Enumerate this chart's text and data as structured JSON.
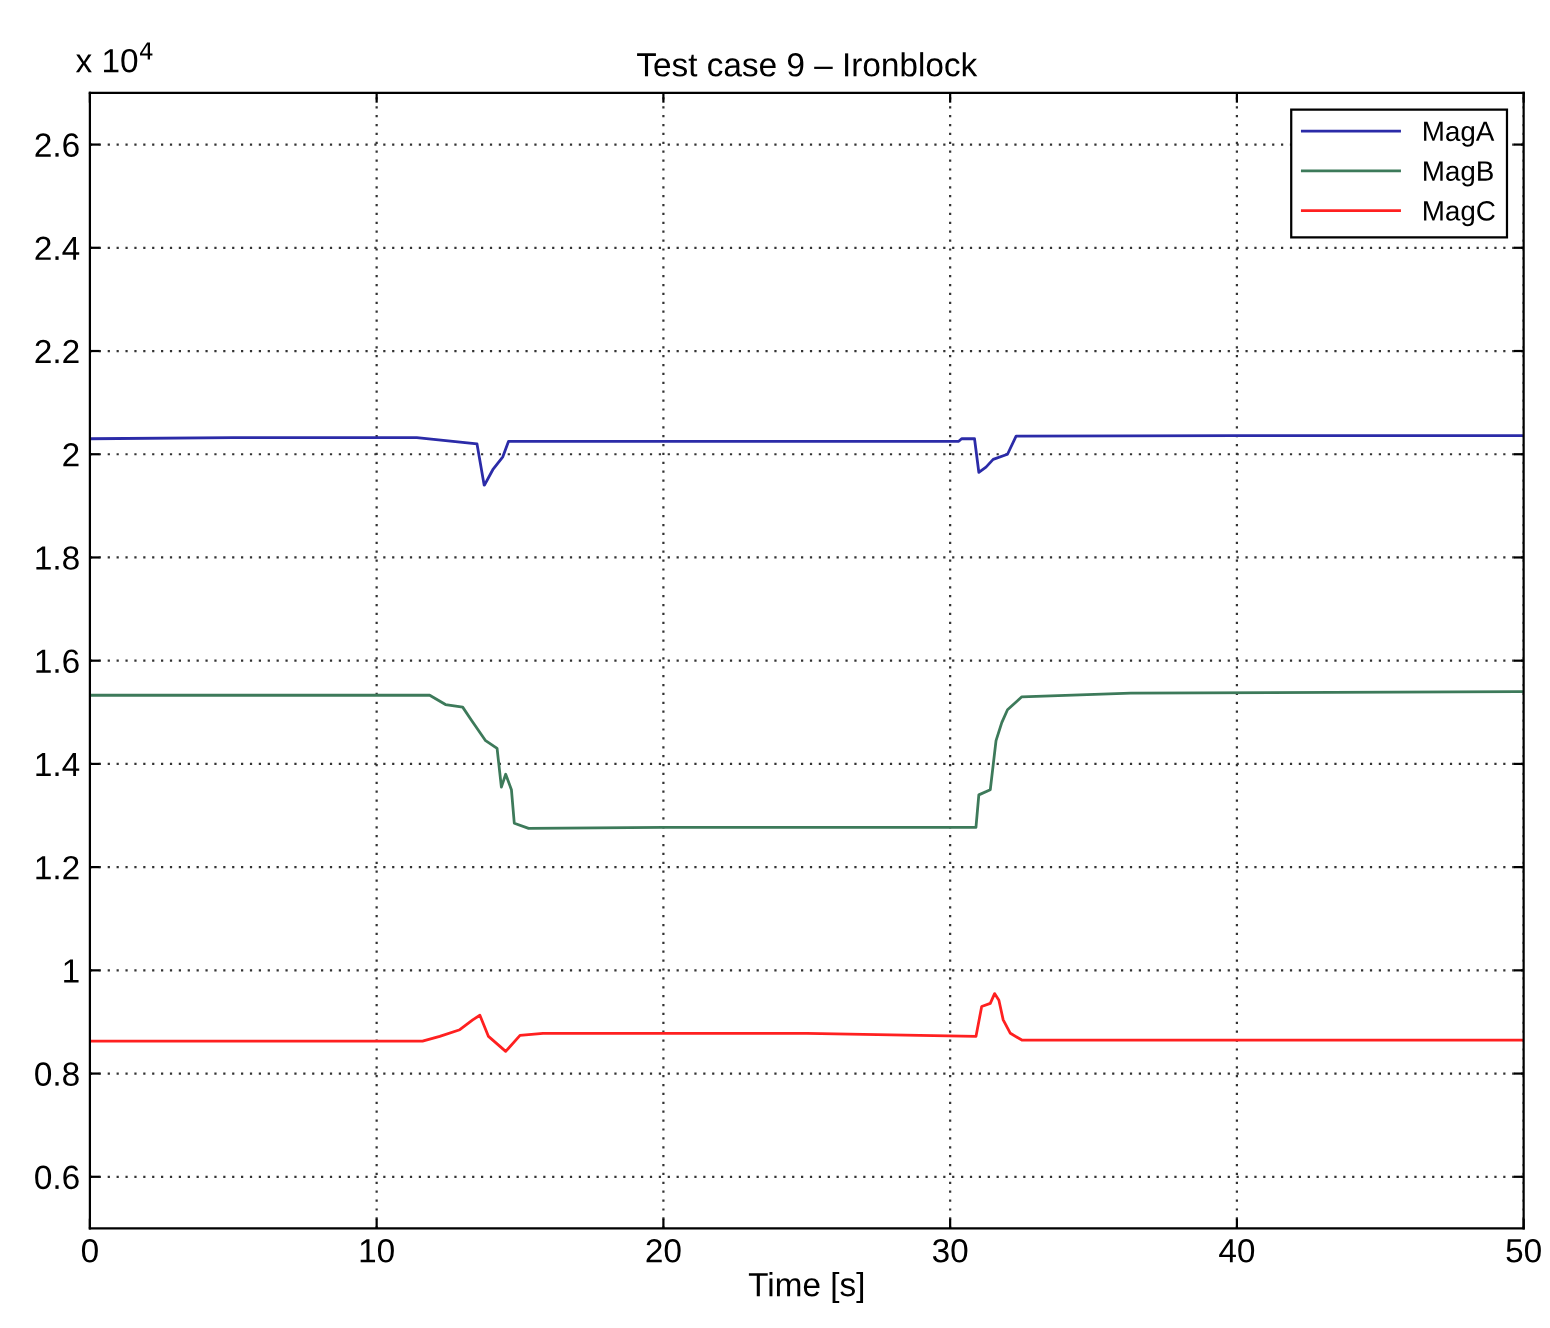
{
  "chart_data": {
    "type": "line",
    "title": "Test case 9 – Ironblock",
    "xlabel": "Time [s]",
    "annotations": [
      "x 10$^{4}$"
    ],
    "xlim": [
      0,
      50
    ],
    "xticks": [
      0,
      10,
      20,
      30,
      40,
      50
    ],
    "ylim": [
      0.5,
      2.7
    ],
    "yticks": [
      0.6,
      0.8,
      1,
      1.2,
      1.4,
      1.6,
      1.8,
      2,
      2.2,
      2.4,
      2.6
    ],
    "grid": true,
    "legend": "top right",
    "line_style": "solid",
    "marker": "none",
    "series": [
      {
        "name": "MagA",
        "color": "#2b2ba8",
        "x": [
          0,
          5,
          11.4,
          13.5,
          13.75,
          13.76,
          14.05,
          14.4,
          14.6,
          20,
          30.3,
          30.4,
          30.85,
          31.0,
          31.25,
          31.5,
          32.0,
          32.3,
          40,
          50
        ],
        "values": [
          2.03,
          2.032,
          2.032,
          2.02,
          1.94,
          1.94,
          1.97,
          1.995,
          2.025,
          2.025,
          2.025,
          2.03,
          2.03,
          1.965,
          1.975,
          1.99,
          2.0,
          2.035,
          2.036,
          2.036
        ]
      },
      {
        "name": "MagB",
        "color": "#3d7a5a",
        "x": [
          0,
          5,
          11.85,
          12.4,
          13.0,
          13.3,
          13.8,
          14.2,
          14.35,
          14.5,
          14.7,
          14.8,
          15.3,
          20,
          30.9,
          31.0,
          31.4,
          31.6,
          31.8,
          32.0,
          32.3,
          32.5,
          36.3,
          49.8,
          50
        ],
        "values": [
          1.533,
          1.533,
          1.533,
          1.515,
          1.51,
          1.485,
          1.445,
          1.43,
          1.355,
          1.38,
          1.35,
          1.285,
          1.275,
          1.277,
          1.277,
          1.34,
          1.35,
          1.445,
          1.48,
          1.505,
          1.52,
          1.53,
          1.537,
          1.54,
          1.54
        ]
      },
      {
        "name": "MagC",
        "color": "#ff2020",
        "x": [
          0,
          5,
          11.6,
          12.2,
          12.9,
          13.35,
          13.6,
          13.9,
          14.5,
          15.0,
          15.8,
          25,
          30.9,
          31.1,
          31.4,
          31.55,
          31.7,
          31.85,
          32.1,
          32.5,
          40,
          50
        ],
        "values": [
          0.863,
          0.863,
          0.863,
          0.872,
          0.885,
          0.904,
          0.913,
          0.872,
          0.843,
          0.874,
          0.878,
          0.878,
          0.872,
          0.93,
          0.936,
          0.955,
          0.942,
          0.904,
          0.878,
          0.865,
          0.865,
          0.865
        ]
      }
    ]
  }
}
